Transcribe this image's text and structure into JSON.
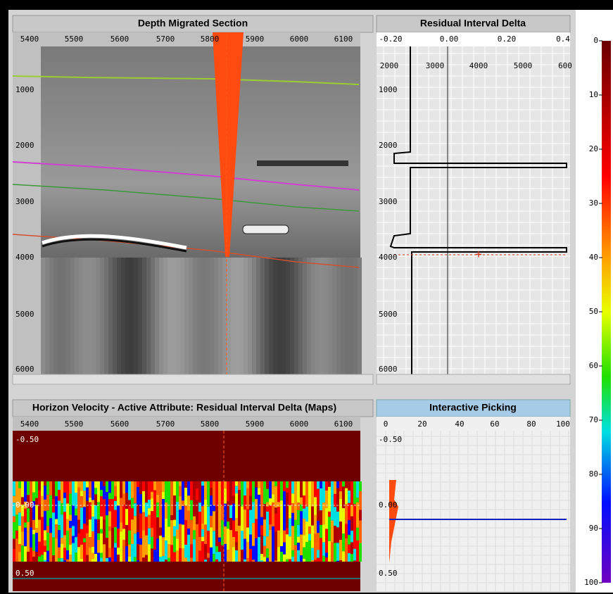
{
  "panels": {
    "depth_section": {
      "title": "Depth Migrated Section",
      "x_ticks": [
        "5400",
        "5500",
        "5600",
        "5700",
        "5800",
        "5900",
        "6000",
        "6100"
      ],
      "y_ticks": [
        "1000",
        "2000",
        "3000",
        "4000",
        "5000",
        "6000"
      ]
    },
    "residual": {
      "title": "Residual Interval Delta",
      "x_ticks": [
        "-0.20",
        "0.00",
        "0.20",
        "0.4"
      ],
      "inner_ticks": [
        "2000",
        "3000",
        "4000",
        "5000",
        "600"
      ],
      "y_ticks": [
        "1000",
        "2000",
        "3000",
        "4000",
        "5000",
        "6000"
      ]
    },
    "horizon_velocity": {
      "title": "Horizon Velocity - Active Attribute: Residual Interval Delta (Maps)",
      "x_ticks": [
        "5400",
        "5500",
        "5600",
        "5700",
        "5800",
        "5900",
        "6000",
        "6100"
      ],
      "y_ticks": [
        "-0.50",
        "0.00",
        "0.50"
      ]
    },
    "picking": {
      "title": "Interactive Picking",
      "x_ticks": [
        "0",
        "20",
        "40",
        "60",
        "80",
        "100"
      ],
      "y_ticks": [
        "-0.50",
        "0.00",
        "0.50"
      ]
    }
  },
  "colorbar": {
    "ticks": [
      "0",
      "10",
      "20",
      "30",
      "40",
      "50",
      "60",
      "70",
      "80",
      "90",
      "100"
    ]
  }
}
